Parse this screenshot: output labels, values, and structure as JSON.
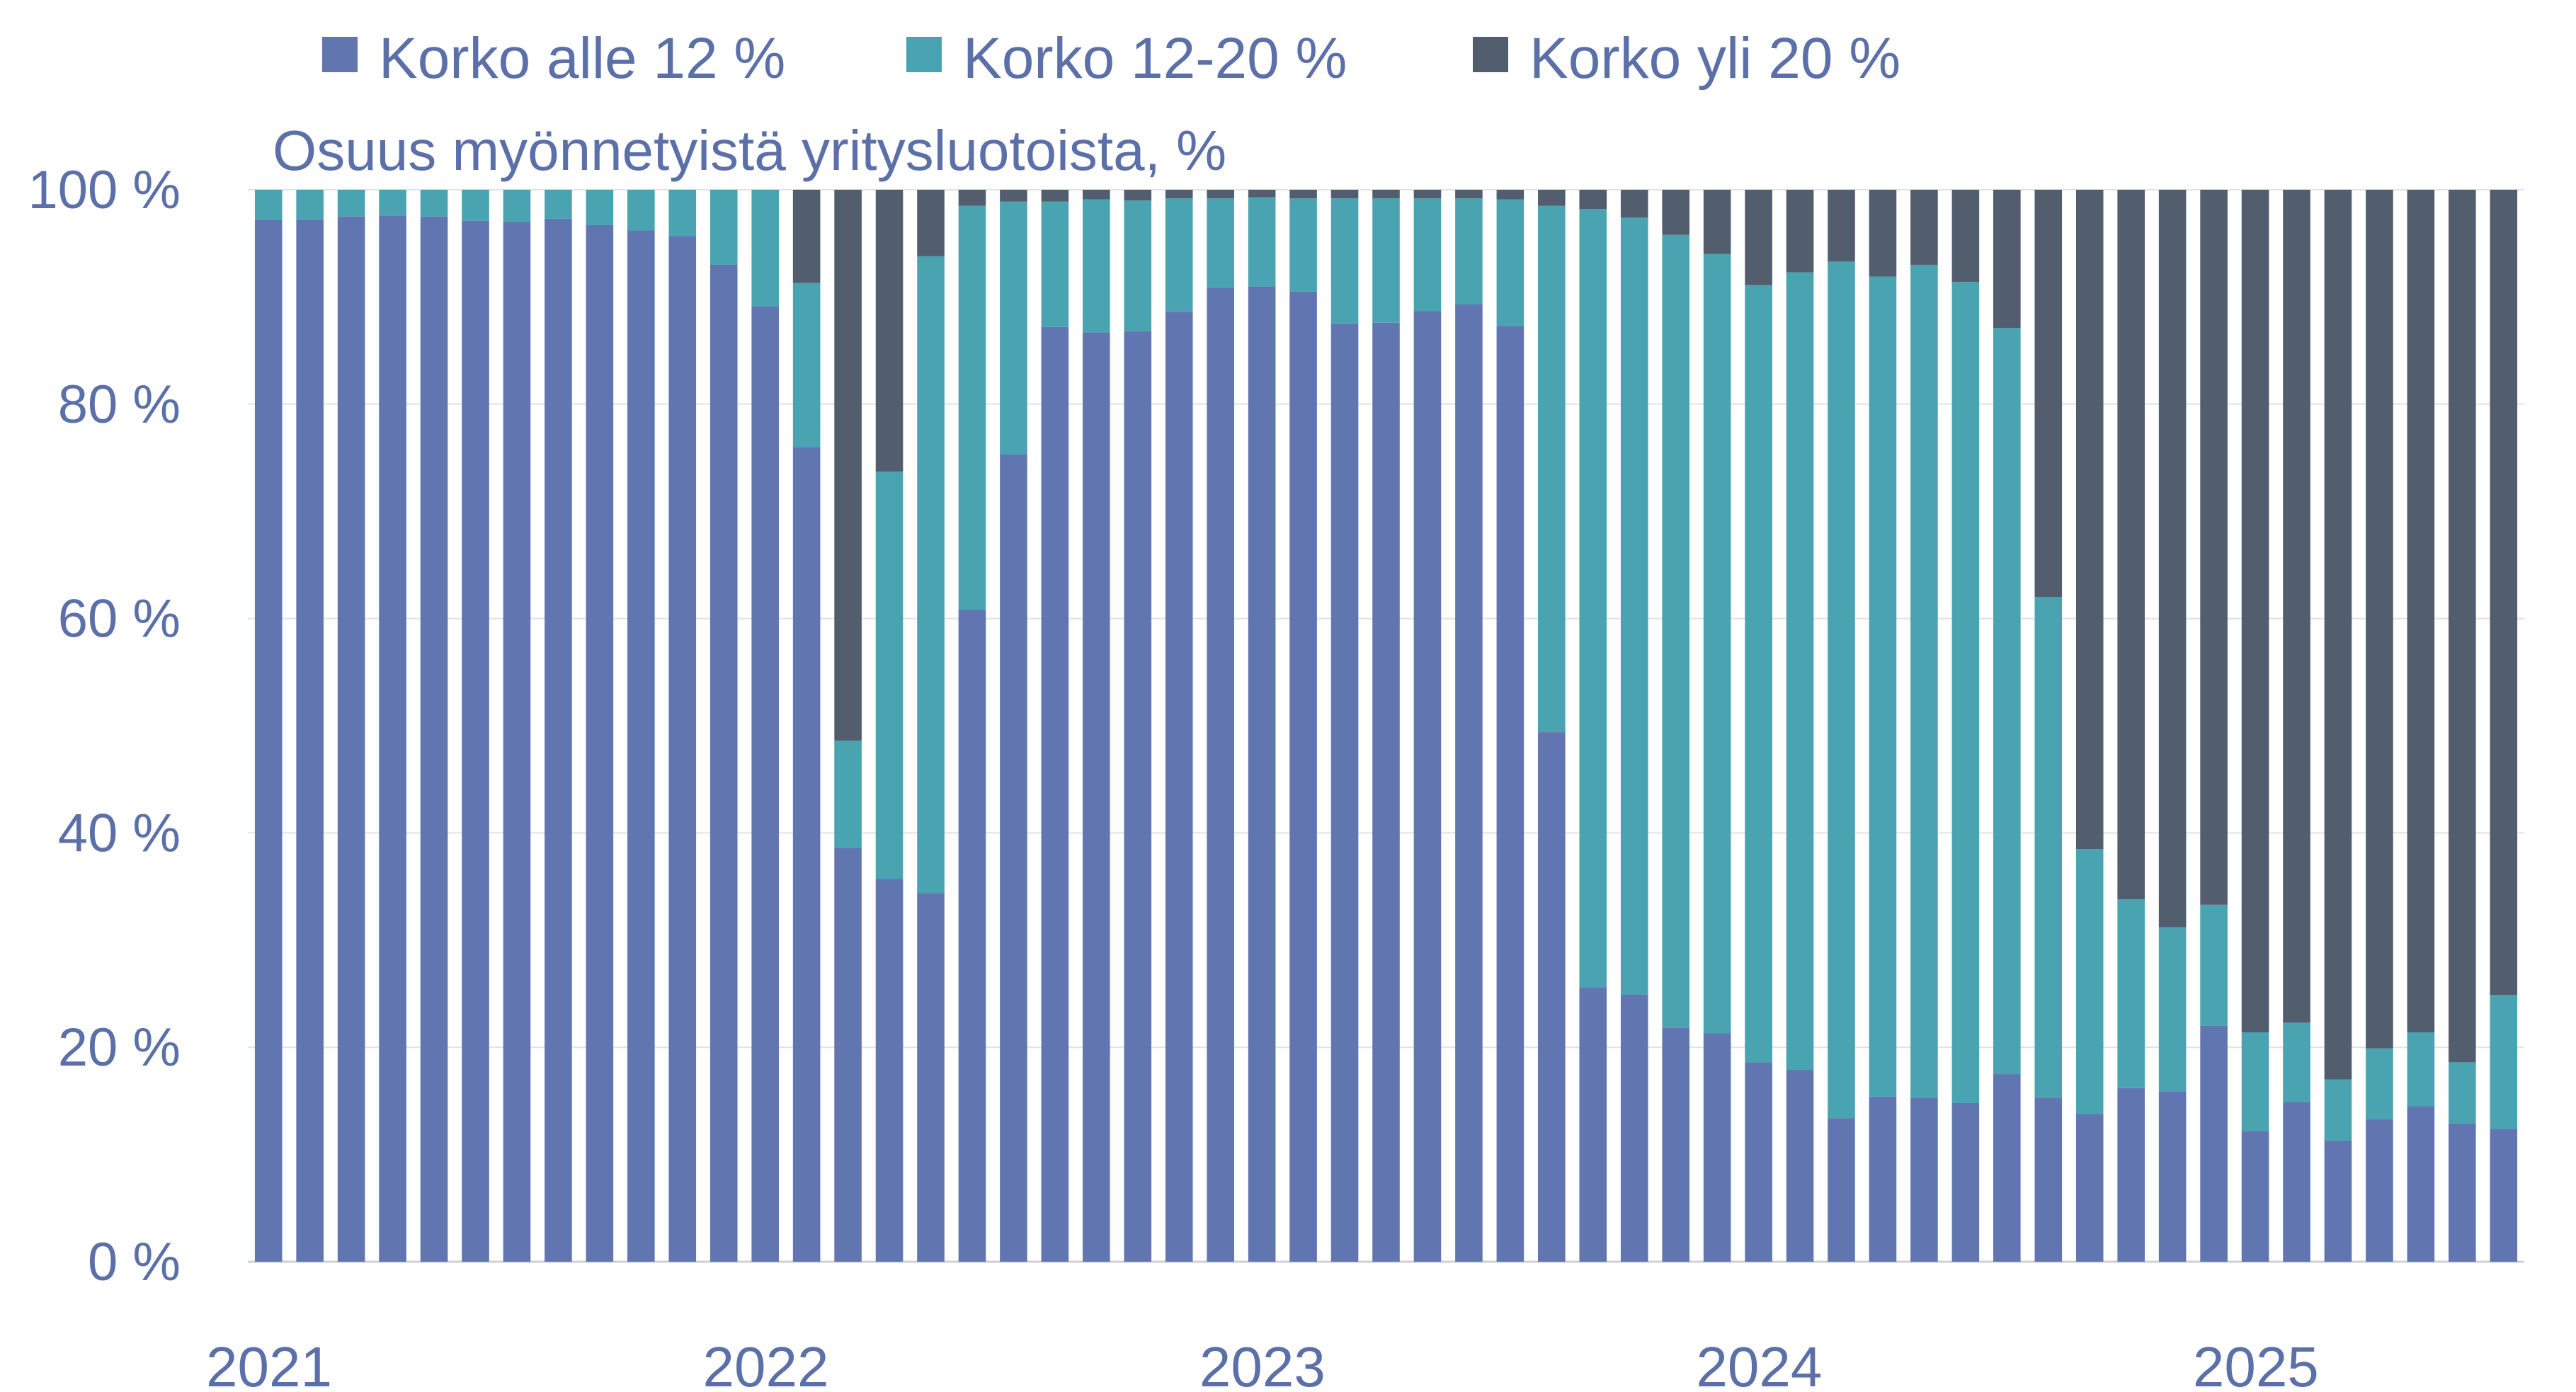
{
  "chart_data": {
    "type": "bar",
    "stacked": true,
    "unit_label": "Osuus myönnetyistä yritysluotoista, %",
    "ylim": [
      0,
      100
    ],
    "y_ticks": [
      "0 %",
      "20 %",
      "40 %",
      "60 %",
      "80 %",
      "100 %"
    ],
    "x_tick_labels": [
      "2021",
      "2022",
      "2023",
      "2024",
      "2025"
    ],
    "grid": true,
    "legend_position": "top",
    "colors": [
      "#6175b1",
      "#4aa3b1",
      "#525d6e"
    ],
    "series": [
      {
        "name": "Korko alle 12 %",
        "values": [
          97.2,
          97.2,
          97.5,
          97.6,
          97.5,
          97.1,
          97.0,
          97.3,
          96.7,
          96.2,
          95.7,
          93.0,
          89.1,
          76.0,
          38.6,
          35.7,
          34.4,
          60.8,
          75.3,
          87.2,
          86.7,
          86.8,
          88.6,
          90.9,
          91.0,
          90.5,
          87.5,
          87.6,
          88.7,
          89.3,
          87.3,
          49.4,
          25.6,
          24.9,
          21.8,
          21.3,
          18.6,
          17.9,
          13.4,
          15.4,
          15.3,
          14.8,
          17.5,
          15.3,
          13.8,
          16.2,
          15.9,
          22.0,
          12.2,
          14.9,
          11.3,
          13.3,
          14.5,
          12.9,
          12.4
        ]
      },
      {
        "name": "Korko 12-20 %",
        "values": [
          2.8,
          2.8,
          2.5,
          2.4,
          2.5,
          2.9,
          3.0,
          2.7,
          3.3,
          3.8,
          4.3,
          7.0,
          10.9,
          15.3,
          10.0,
          38.0,
          59.4,
          37.7,
          23.6,
          11.7,
          12.4,
          12.2,
          10.6,
          8.3,
          8.3,
          8.7,
          11.7,
          11.6,
          10.5,
          9.9,
          11.8,
          49.1,
          72.6,
          72.5,
          74.0,
          72.7,
          72.5,
          74.4,
          79.9,
          76.5,
          77.7,
          76.6,
          69.6,
          46.7,
          24.7,
          17.6,
          15.3,
          11.3,
          9.2,
          7.4,
          5.7,
          6.6,
          6.9,
          5.7,
          12.5
        ]
      },
      {
        "name": "Korko yli 20 %",
        "values": [
          0,
          0,
          0,
          0,
          0,
          0,
          0,
          0,
          0,
          0,
          0,
          0,
          0,
          8.7,
          51.4,
          26.3,
          6.2,
          1.5,
          1.1,
          1.1,
          0.9,
          1.0,
          0.8,
          0.8,
          0.7,
          0.8,
          0.8,
          0.8,
          0.8,
          0.8,
          0.9,
          1.5,
          1.8,
          2.6,
          4.2,
          6.0,
          8.9,
          7.7,
          6.7,
          8.1,
          7.0,
          8.6,
          12.9,
          38.0,
          61.5,
          66.2,
          68.8,
          66.7,
          78.6,
          77.7,
          83.0,
          80.1,
          78.6,
          81.4,
          75.1
        ]
      }
    ]
  }
}
